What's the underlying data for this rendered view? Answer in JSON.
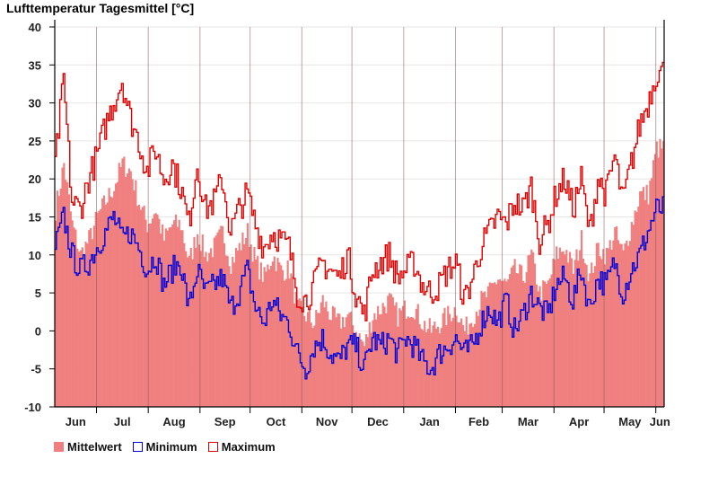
{
  "chart_data": {
    "type": "bar+line",
    "title": "Lufttemperatur Tagesmittel [°C]",
    "xlabel": "",
    "ylabel": "",
    "ylim": [
      -10,
      40
    ],
    "yticks": [
      -10,
      -5,
      0,
      5,
      10,
      15,
      20,
      25,
      30,
      35,
      40
    ],
    "grid": true,
    "x_tick_labels": [
      "Jun",
      "Jul",
      "Aug",
      "Sep",
      "Oct",
      "Nov",
      "Dec",
      "Jan",
      "Feb",
      "Mar",
      "Apr",
      "May",
      "Jun"
    ],
    "days_per_month": [
      25,
      31,
      31,
      30,
      31,
      30,
      31,
      31,
      28,
      31,
      30,
      31,
      5
    ],
    "legend_placement": "bottom-left",
    "colors": {
      "mean": "#f08080",
      "min": "#0000dd",
      "max": "#dd0000",
      "month_divider": "#8a5a5a",
      "grid": "#e6e6e6"
    },
    "series": [
      {
        "name": "Mittelwert",
        "style": "bar",
        "anchors_per_5_days": [
          16,
          22,
          14,
          10,
          12,
          15,
          17,
          19,
          22,
          21,
          17,
          14,
          16,
          12,
          14,
          14,
          9,
          13,
          10,
          11,
          13,
          9,
          11,
          13,
          9,
          7,
          10,
          8,
          8,
          3,
          2,
          1,
          4,
          2,
          1,
          2,
          0,
          -2,
          2,
          3,
          4,
          2,
          3,
          3,
          1,
          0,
          1,
          2,
          3,
          0,
          2,
          4,
          5,
          7,
          6,
          8,
          7,
          10,
          5,
          6,
          10,
          11,
          8,
          12,
          7,
          11,
          10,
          13,
          10,
          14,
          18,
          18,
          24
        ]
      },
      {
        "name": "Minimum",
        "style": "step",
        "anchors_per_5_days": [
          11,
          15,
          10,
          8,
          9,
          11,
          13,
          15,
          12,
          13,
          11,
          8,
          10,
          6,
          8,
          9,
          3,
          8,
          5,
          6,
          7,
          3,
          5,
          8,
          3,
          1,
          4,
          2,
          1,
          -3,
          -5,
          -2,
          -1,
          -3,
          -4,
          -2,
          -2,
          -5,
          -1,
          -2,
          -1,
          -3,
          -1,
          -2,
          -4,
          -5,
          -3,
          -2,
          -1,
          -3,
          -2,
          1,
          3,
          1,
          4,
          0,
          2,
          5,
          3,
          2,
          6,
          7,
          4,
          8,
          3,
          7,
          6,
          9,
          5,
          8,
          10,
          13,
          16
        ]
      },
      {
        "name": "Maximum",
        "style": "step",
        "anchors_per_5_days": [
          22,
          33,
          17,
          16,
          20,
          23,
          27,
          30,
          33,
          28,
          25,
          21,
          24,
          20,
          22,
          19,
          14,
          22,
          16,
          17,
          20,
          13,
          16,
          18,
          14,
          11,
          13,
          12,
          11,
          5,
          4,
          6,
          9,
          8,
          7,
          10,
          5,
          2,
          8,
          9,
          10,
          7,
          8,
          9,
          6,
          5,
          6,
          8,
          9,
          4,
          7,
          11,
          13,
          15,
          14,
          17,
          16,
          19,
          12,
          14,
          18,
          20,
          16,
          20,
          13,
          20,
          18,
          23,
          17,
          22,
          27,
          30,
          34
        ]
      }
    ]
  },
  "legend": {
    "mean_label": "Mittelwert",
    "min_label": "Minimum",
    "max_label": "Maximum"
  }
}
